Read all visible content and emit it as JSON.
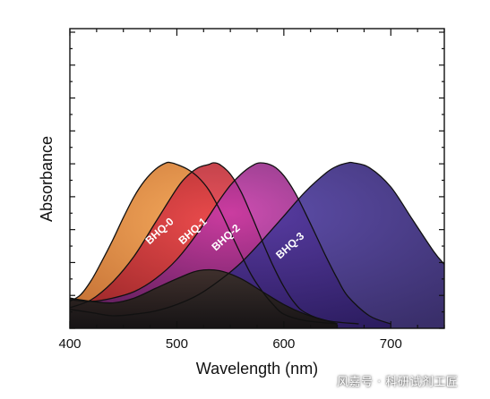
{
  "chart_data": {
    "type": "area",
    "title": "",
    "xlabel": "Wavelength (nm)",
    "ylabel": "Absorbance",
    "xlim": [
      400,
      750
    ],
    "ylim": [
      0,
      1
    ],
    "x_ticks": [
      "400",
      "500",
      "600",
      "700"
    ],
    "x_tick_values": [
      400,
      500,
      600,
      700
    ],
    "grid": false,
    "legend": "none",
    "series": [
      {
        "name": "BHQ-0",
        "color": "#e07a2a",
        "x": [
          400,
          410,
          420,
          430,
          440,
          450,
          460,
          470,
          480,
          490,
          495,
          500,
          510,
          520,
          530,
          540,
          550,
          560,
          570,
          580,
          590,
          600,
          620,
          650
        ],
        "y": [
          0.14,
          0.18,
          0.27,
          0.39,
          0.52,
          0.66,
          0.79,
          0.89,
          0.96,
          1.0,
          1.0,
          0.99,
          0.96,
          0.91,
          0.83,
          0.71,
          0.57,
          0.43,
          0.3,
          0.2,
          0.12,
          0.06,
          0.02,
          0.0
        ]
      },
      {
        "name": "BHQ-1",
        "color": "#cc2a2a",
        "x": [
          400,
          420,
          440,
          460,
          480,
          500,
          510,
          520,
          530,
          534,
          540,
          550,
          560,
          570,
          580,
          590,
          600,
          610,
          620,
          640,
          670
        ],
        "y": [
          0.1,
          0.15,
          0.26,
          0.42,
          0.63,
          0.84,
          0.92,
          0.97,
          0.99,
          1.0,
          0.99,
          0.93,
          0.82,
          0.67,
          0.51,
          0.36,
          0.23,
          0.13,
          0.07,
          0.02,
          0.0
        ]
      },
      {
        "name": "BHQ-2",
        "color": "#8a2a9a",
        "x": [
          400,
          420,
          440,
          460,
          480,
          500,
          520,
          540,
          550,
          560,
          570,
          578,
          590,
          600,
          610,
          620,
          630,
          640,
          650,
          660,
          680,
          700
        ],
        "y": [
          0.15,
          0.14,
          0.16,
          0.2,
          0.28,
          0.4,
          0.57,
          0.77,
          0.86,
          0.93,
          0.98,
          1.0,
          0.98,
          0.92,
          0.82,
          0.69,
          0.55,
          0.41,
          0.28,
          0.17,
          0.05,
          0.0
        ]
      },
      {
        "name": "BHQ-3",
        "color": "#3a2a8a",
        "x": [
          400,
          420,
          440,
          460,
          480,
          500,
          520,
          540,
          560,
          580,
          600,
          620,
          640,
          650,
          660,
          665,
          680,
          700,
          720,
          740,
          750
        ],
        "y": [
          0.09,
          0.07,
          0.05,
          0.06,
          0.08,
          0.12,
          0.18,
          0.27,
          0.38,
          0.52,
          0.67,
          0.82,
          0.94,
          0.98,
          1.0,
          1.0,
          0.97,
          0.85,
          0.65,
          0.45,
          0.37
        ]
      }
    ],
    "background_series": {
      "x": [
        400,
        420,
        440,
        460,
        480,
        500,
        520,
        540,
        560,
        580,
        600,
        620,
        640,
        650
      ],
      "y": [
        0.16,
        0.14,
        0.13,
        0.16,
        0.22,
        0.28,
        0.33,
        0.33,
        0.28,
        0.2,
        0.12,
        0.06,
        0.02,
        0.0
      ]
    }
  },
  "watermark_text": "风嘉号 · 科研试剂工匠"
}
